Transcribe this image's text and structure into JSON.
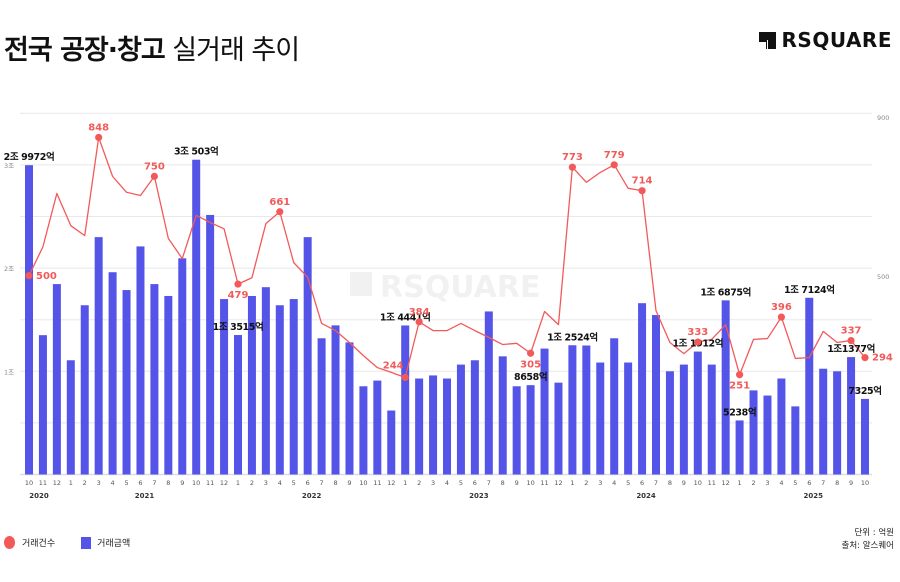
{
  "header": {
    "title_bold": "전국 공장·창고",
    "title_light": "실거래 추이",
    "logo_text": "RSQUARE",
    "watermark_text": "RSQUARE"
  },
  "legend": {
    "items": [
      {
        "label": "거래건수",
        "shape": "circle",
        "color": "#f25a5a"
      },
      {
        "label": "거래금액",
        "shape": "square",
        "color": "#5454e8"
      }
    ]
  },
  "notes": {
    "unit": "단위 : 억원",
    "source": "출처: 알스퀘어"
  },
  "colors": {
    "bar": "#5454e8",
    "line": "#f25a5a",
    "grid": "#e8e8ee",
    "label_dark": "#111111"
  },
  "chart_data": {
    "type": "bar+line",
    "title": "전국 공장·창고 실거래 추이",
    "left_axis": {
      "label": "거래금액",
      "ticks": [
        "1조",
        "2조",
        "3조"
      ],
      "tick_values": [
        10000,
        20000,
        30000
      ],
      "range": [
        0,
        34000
      ]
    },
    "right_axis": {
      "label": "거래건수",
      "ticks": [
        "500",
        "900"
      ],
      "tick_values": [
        500,
        900
      ],
      "range": [
        0,
        1000
      ]
    },
    "grid": true,
    "legend_position": "bottom-left",
    "x_months": [
      "10",
      "11",
      "12",
      "1",
      "2",
      "3",
      "4",
      "5",
      "6",
      "7",
      "8",
      "9",
      "10",
      "11",
      "12",
      "1",
      "2",
      "3",
      "4",
      "5",
      "6",
      "7",
      "8",
      "9",
      "10",
      "11",
      "12",
      "1",
      "2",
      "3",
      "4",
      "5",
      "6",
      "7",
      "8",
      "9",
      "10",
      "11",
      "12",
      "1",
      "2",
      "3",
      "4",
      "5",
      "6",
      "7",
      "8",
      "9",
      "10",
      "11",
      "12",
      "1",
      "2",
      "3",
      "4",
      "5",
      "6",
      "7",
      "8",
      "9",
      "10"
    ],
    "x_years": [
      {
        "label": "2020",
        "index": 0
      },
      {
        "label": "2021",
        "index": 8
      },
      {
        "label": "2022",
        "index": 20
      },
      {
        "label": "2023",
        "index": 32
      },
      {
        "label": "2024",
        "index": 44
      },
      {
        "label": "2025",
        "index": 56
      }
    ],
    "series": [
      {
        "name": "거래금액",
        "type": "bar",
        "unit": "억원",
        "values": [
          29972,
          13500,
          18450,
          11070,
          16400,
          23000,
          19600,
          17870,
          22100,
          18450,
          17300,
          20950,
          30503,
          25150,
          17000,
          13515,
          17300,
          18150,
          16400,
          17000,
          23000,
          13200,
          14450,
          12800,
          8550,
          9100,
          6200,
          14441,
          9300,
          9600,
          9300,
          10650,
          11070,
          15800,
          11450,
          8550,
          8658,
          12200,
          8900,
          12524,
          12500,
          10850,
          13200,
          10850,
          16600,
          15450,
          10000,
          10650,
          11912,
          10650,
          16875,
          5238,
          8150,
          7650,
          9300,
          6600,
          17124,
          10250,
          10000,
          11377,
          7325
        ]
      },
      {
        "name": "거래건수",
        "type": "line",
        "values": [
          500,
          573,
          707,
          626,
          601,
          848,
          750,
          710,
          702,
          750,
          594,
          543,
          652,
          634,
          618,
          479,
          495,
          631,
          661,
          533,
          496,
          380,
          362,
          332,
          299,
          269,
          257,
          244,
          384,
          362,
          362,
          380,
          362,
          345,
          327,
          330,
          305,
          410,
          377,
          773,
          735,
          760,
          779,
          720,
          714,
          412,
          332,
          304,
          333,
          340,
          377,
          251,
          340,
          342,
          396,
          292,
          294,
          360,
          332,
          337,
          294
        ]
      }
    ],
    "bar_annotations": [
      {
        "index": 0,
        "text": "2조 9972억"
      },
      {
        "index": 12,
        "text": "3조 503억"
      },
      {
        "index": 15,
        "text": "1조 3515억"
      },
      {
        "index": 27,
        "text": "1조 4441억"
      },
      {
        "index": 36,
        "text": "8658억"
      },
      {
        "index": 39,
        "text": "1조 2524억"
      },
      {
        "index": 48,
        "text": "1조 1912억"
      },
      {
        "index": 50,
        "text": "1조 6875억"
      },
      {
        "index": 51,
        "text": "5238억"
      },
      {
        "index": 56,
        "text": "1조 7124억"
      },
      {
        "index": 59,
        "text": "1조1377억"
      },
      {
        "index": 60,
        "text": "7325억"
      }
    ],
    "line_annotations": [
      {
        "index": 0,
        "text": "500",
        "pos": "right"
      },
      {
        "index": 5,
        "text": "848",
        "pos": "above"
      },
      {
        "index": 9,
        "text": "750",
        "pos": "above"
      },
      {
        "index": 15,
        "text": "479",
        "pos": "below"
      },
      {
        "index": 18,
        "text": "661",
        "pos": "above"
      },
      {
        "index": 27,
        "text": "244",
        "pos": "above-left"
      },
      {
        "index": 28,
        "text": "384",
        "pos": "above"
      },
      {
        "index": 36,
        "text": "305",
        "pos": "below"
      },
      {
        "index": 39,
        "text": "773",
        "pos": "above"
      },
      {
        "index": 42,
        "text": "779",
        "pos": "above"
      },
      {
        "index": 44,
        "text": "714",
        "pos": "above"
      },
      {
        "index": 48,
        "text": "333",
        "pos": "above"
      },
      {
        "index": 51,
        "text": "251",
        "pos": "below"
      },
      {
        "index": 54,
        "text": "396",
        "pos": "above"
      },
      {
        "index": 59,
        "text": "337",
        "pos": "above"
      },
      {
        "index": 60,
        "text": "294",
        "pos": "right"
      }
    ]
  }
}
